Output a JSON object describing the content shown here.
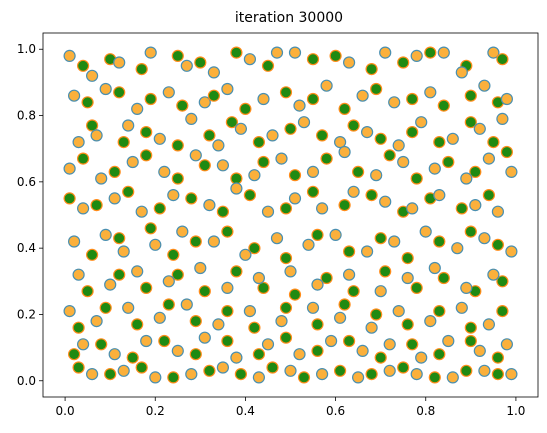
{
  "chart_data": {
    "type": "scatter",
    "title": "iteration 30000",
    "xlabel": "",
    "ylabel": "",
    "xlim": [
      -0.049,
      1.049
    ],
    "ylim": [
      -0.049,
      1.049
    ],
    "xticks": [
      0.0,
      0.2,
      0.4,
      0.6,
      0.8,
      1.0
    ],
    "yticks": [
      0.0,
      0.2,
      0.4,
      0.6,
      0.8,
      1.0
    ],
    "xtick_labels": [
      "0.0",
      "0.2",
      "0.4",
      "0.6",
      "0.8",
      "1.0"
    ],
    "ytick_labels": [
      "0.0",
      "0.2",
      "0.4",
      "0.6",
      "0.8",
      "1.0"
    ],
    "grid": false,
    "legend": "none",
    "series": [
      {
        "marker_face": "#fbb03b",
        "marker_edge": "#4a8fb0",
        "approx_points": 500,
        "distribution": "uniform over [0,1] x [0,1]",
        "points": [
          [
            0.01,
            0.98
          ],
          [
            0.06,
            0.92
          ],
          [
            0.12,
            0.96
          ],
          [
            0.19,
            0.99
          ],
          [
            0.27,
            0.95
          ],
          [
            0.33,
            0.93
          ],
          [
            0.41,
            0.97
          ],
          [
            0.47,
            0.99
          ],
          [
            0.51,
            0.99
          ],
          [
            0.63,
            0.96
          ],
          [
            0.71,
            0.99
          ],
          [
            0.78,
            0.98
          ],
          [
            0.84,
            0.99
          ],
          [
            0.95,
            0.99
          ],
          [
            0.02,
            0.86
          ],
          [
            0.09,
            0.88
          ],
          [
            0.16,
            0.82
          ],
          [
            0.23,
            0.87
          ],
          [
            0.31,
            0.84
          ],
          [
            0.36,
            0.88
          ],
          [
            0.44,
            0.85
          ],
          [
            0.52,
            0.83
          ],
          [
            0.58,
            0.89
          ],
          [
            0.66,
            0.86
          ],
          [
            0.73,
            0.84
          ],
          [
            0.81,
            0.87
          ],
          [
            0.88,
            0.93
          ],
          [
            0.93,
            0.89
          ],
          [
            0.98,
            0.85
          ],
          [
            0.03,
            0.72
          ],
          [
            0.07,
            0.74
          ],
          [
            0.14,
            0.77
          ],
          [
            0.21,
            0.73
          ],
          [
            0.28,
            0.79
          ],
          [
            0.34,
            0.71
          ],
          [
            0.39,
            0.76
          ],
          [
            0.46,
            0.74
          ],
          [
            0.53,
            0.78
          ],
          [
            0.61,
            0.72
          ],
          [
            0.67,
            0.75
          ],
          [
            0.74,
            0.71
          ],
          [
            0.79,
            0.78
          ],
          [
            0.86,
            0.73
          ],
          [
            0.92,
            0.76
          ],
          [
            0.97,
            0.79
          ],
          [
            0.01,
            0.64
          ],
          [
            0.08,
            0.61
          ],
          [
            0.15,
            0.66
          ],
          [
            0.22,
            0.63
          ],
          [
            0.29,
            0.68
          ],
          [
            0.35,
            0.65
          ],
          [
            0.42,
            0.62
          ],
          [
            0.48,
            0.67
          ],
          [
            0.55,
            0.63
          ],
          [
            0.62,
            0.69
          ],
          [
            0.69,
            0.62
          ],
          [
            0.75,
            0.66
          ],
          [
            0.82,
            0.64
          ],
          [
            0.89,
            0.61
          ],
          [
            0.94,
            0.67
          ],
          [
            0.99,
            0.63
          ],
          [
            0.04,
            0.52
          ],
          [
            0.11,
            0.55
          ],
          [
            0.17,
            0.51
          ],
          [
            0.24,
            0.56
          ],
          [
            0.32,
            0.53
          ],
          [
            0.38,
            0.58
          ],
          [
            0.45,
            0.51
          ],
          [
            0.51,
            0.55
          ],
          [
            0.57,
            0.52
          ],
          [
            0.64,
            0.57
          ],
          [
            0.71,
            0.54
          ],
          [
            0.77,
            0.52
          ],
          [
            0.83,
            0.56
          ],
          [
            0.91,
            0.53
          ],
          [
            0.96,
            0.51
          ],
          [
            0.02,
            0.42
          ],
          [
            0.09,
            0.44
          ],
          [
            0.13,
            0.39
          ],
          [
            0.2,
            0.41
          ],
          [
            0.26,
            0.45
          ],
          [
            0.33,
            0.42
          ],
          [
            0.4,
            0.38
          ],
          [
            0.47,
            0.43
          ],
          [
            0.54,
            0.41
          ],
          [
            0.6,
            0.44
          ],
          [
            0.67,
            0.39
          ],
          [
            0.73,
            0.42
          ],
          [
            0.8,
            0.45
          ],
          [
            0.87,
            0.4
          ],
          [
            0.93,
            0.43
          ],
          [
            0.99,
            0.39
          ],
          [
            0.03,
            0.32
          ],
          [
            0.1,
            0.29
          ],
          [
            0.16,
            0.33
          ],
          [
            0.23,
            0.3
          ],
          [
            0.3,
            0.34
          ],
          [
            0.36,
            0.28
          ],
          [
            0.43,
            0.31
          ],
          [
            0.5,
            0.33
          ],
          [
            0.56,
            0.29
          ],
          [
            0.63,
            0.32
          ],
          [
            0.7,
            0.27
          ],
          [
            0.76,
            0.31
          ],
          [
            0.82,
            0.34
          ],
          [
            0.89,
            0.28
          ],
          [
            0.95,
            0.32
          ],
          [
            0.01,
            0.21
          ],
          [
            0.07,
            0.18
          ],
          [
            0.14,
            0.22
          ],
          [
            0.21,
            0.19
          ],
          [
            0.27,
            0.23
          ],
          [
            0.34,
            0.17
          ],
          [
            0.41,
            0.21
          ],
          [
            0.48,
            0.18
          ],
          [
            0.55,
            0.22
          ],
          [
            0.61,
            0.19
          ],
          [
            0.68,
            0.16
          ],
          [
            0.74,
            0.21
          ],
          [
            0.81,
            0.18
          ],
          [
            0.88,
            0.22
          ],
          [
            0.94,
            0.17
          ],
          [
            0.04,
            0.11
          ],
          [
            0.11,
            0.08
          ],
          [
            0.18,
            0.12
          ],
          [
            0.25,
            0.09
          ],
          [
            0.31,
            0.13
          ],
          [
            0.38,
            0.07
          ],
          [
            0.45,
            0.11
          ],
          [
            0.52,
            0.08
          ],
          [
            0.59,
            0.12
          ],
          [
            0.66,
            0.09
          ],
          [
            0.72,
            0.11
          ],
          [
            0.79,
            0.07
          ],
          [
            0.85,
            0.12
          ],
          [
            0.92,
            0.09
          ],
          [
            0.98,
            0.11
          ],
          [
            0.06,
            0.02
          ],
          [
            0.13,
            0.03
          ],
          [
            0.2,
            0.01
          ],
          [
            0.28,
            0.02
          ],
          [
            0.35,
            0.04
          ],
          [
            0.43,
            0.01
          ],
          [
            0.5,
            0.03
          ],
          [
            0.57,
            0.02
          ],
          [
            0.65,
            0.01
          ],
          [
            0.72,
            0.03
          ],
          [
            0.78,
            0.02
          ],
          [
            0.86,
            0.01
          ],
          [
            0.93,
            0.03
          ],
          [
            0.99,
            0.02
          ]
        ]
      },
      {
        "marker_face": "#1f8a12",
        "marker_edge": "#ff8c1a",
        "approx_points": 500,
        "distribution": "uniform over [0,1] x [0,1]",
        "points": [
          [
            0.04,
            0.95
          ],
          [
            0.1,
            0.97
          ],
          [
            0.17,
            0.94
          ],
          [
            0.25,
            0.98
          ],
          [
            0.3,
            0.96
          ],
          [
            0.38,
            0.99
          ],
          [
            0.45,
            0.95
          ],
          [
            0.55,
            0.97
          ],
          [
            0.6,
            0.98
          ],
          [
            0.68,
            0.94
          ],
          [
            0.75,
            0.96
          ],
          [
            0.81,
            0.99
          ],
          [
            0.89,
            0.95
          ],
          [
            0.97,
            0.97
          ],
          [
            0.05,
            0.84
          ],
          [
            0.12,
            0.87
          ],
          [
            0.19,
            0.85
          ],
          [
            0.26,
            0.83
          ],
          [
            0.33,
            0.86
          ],
          [
            0.4,
            0.82
          ],
          [
            0.49,
            0.87
          ],
          [
            0.55,
            0.85
          ],
          [
            0.62,
            0.82
          ],
          [
            0.69,
            0.88
          ],
          [
            0.77,
            0.85
          ],
          [
            0.84,
            0.83
          ],
          [
            0.9,
            0.86
          ],
          [
            0.96,
            0.84
          ],
          [
            0.06,
            0.77
          ],
          [
            0.13,
            0.72
          ],
          [
            0.18,
            0.75
          ],
          [
            0.25,
            0.71
          ],
          [
            0.32,
            0.74
          ],
          [
            0.37,
            0.78
          ],
          [
            0.43,
            0.72
          ],
          [
            0.5,
            0.76
          ],
          [
            0.57,
            0.74
          ],
          [
            0.64,
            0.77
          ],
          [
            0.7,
            0.73
          ],
          [
            0.77,
            0.75
          ],
          [
            0.83,
            0.72
          ],
          [
            0.9,
            0.78
          ],
          [
            0.95,
            0.72
          ],
          [
            0.04,
            0.67
          ],
          [
            0.11,
            0.63
          ],
          [
            0.18,
            0.68
          ],
          [
            0.25,
            0.61
          ],
          [
            0.31,
            0.65
          ],
          [
            0.38,
            0.61
          ],
          [
            0.44,
            0.66
          ],
          [
            0.51,
            0.62
          ],
          [
            0.58,
            0.67
          ],
          [
            0.65,
            0.63
          ],
          [
            0.72,
            0.68
          ],
          [
            0.78,
            0.61
          ],
          [
            0.85,
            0.66
          ],
          [
            0.91,
            0.63
          ],
          [
            0.98,
            0.69
          ],
          [
            0.01,
            0.55
          ],
          [
            0.07,
            0.53
          ],
          [
            0.14,
            0.57
          ],
          [
            0.21,
            0.52
          ],
          [
            0.28,
            0.55
          ],
          [
            0.35,
            0.51
          ],
          [
            0.41,
            0.56
          ],
          [
            0.49,
            0.52
          ],
          [
            0.55,
            0.57
          ],
          [
            0.62,
            0.53
          ],
          [
            0.68,
            0.56
          ],
          [
            0.75,
            0.51
          ],
          [
            0.81,
            0.55
          ],
          [
            0.88,
            0.52
          ],
          [
            0.94,
            0.56
          ],
          [
            0.06,
            0.38
          ],
          [
            0.12,
            0.43
          ],
          [
            0.19,
            0.46
          ],
          [
            0.24,
            0.38
          ],
          [
            0.29,
            0.42
          ],
          [
            0.36,
            0.45
          ],
          [
            0.42,
            0.4
          ],
          [
            0.49,
            0.37
          ],
          [
            0.56,
            0.44
          ],
          [
            0.63,
            0.39
          ],
          [
            0.7,
            0.43
          ],
          [
            0.76,
            0.37
          ],
          [
            0.83,
            0.42
          ],
          [
            0.9,
            0.45
          ],
          [
            0.96,
            0.41
          ],
          [
            0.05,
            0.27
          ],
          [
            0.12,
            0.32
          ],
          [
            0.18,
            0.28
          ],
          [
            0.25,
            0.32
          ],
          [
            0.31,
            0.27
          ],
          [
            0.38,
            0.33
          ],
          [
            0.44,
            0.28
          ],
          [
            0.51,
            0.26
          ],
          [
            0.58,
            0.31
          ],
          [
            0.64,
            0.27
          ],
          [
            0.71,
            0.33
          ],
          [
            0.78,
            0.28
          ],
          [
            0.84,
            0.31
          ],
          [
            0.91,
            0.27
          ],
          [
            0.97,
            0.3
          ],
          [
            0.03,
            0.16
          ],
          [
            0.09,
            0.22
          ],
          [
            0.16,
            0.17
          ],
          [
            0.23,
            0.23
          ],
          [
            0.29,
            0.18
          ],
          [
            0.36,
            0.21
          ],
          [
            0.42,
            0.16
          ],
          [
            0.49,
            0.22
          ],
          [
            0.56,
            0.17
          ],
          [
            0.62,
            0.23
          ],
          [
            0.69,
            0.2
          ],
          [
            0.76,
            0.17
          ],
          [
            0.83,
            0.21
          ],
          [
            0.9,
            0.16
          ],
          [
            0.97,
            0.21
          ],
          [
            0.02,
            0.08
          ],
          [
            0.08,
            0.11
          ],
          [
            0.15,
            0.07
          ],
          [
            0.22,
            0.12
          ],
          [
            0.29,
            0.08
          ],
          [
            0.36,
            0.12
          ],
          [
            0.43,
            0.08
          ],
          [
            0.49,
            0.13
          ],
          [
            0.56,
            0.09
          ],
          [
            0.63,
            0.12
          ],
          [
            0.7,
            0.07
          ],
          [
            0.77,
            0.11
          ],
          [
            0.83,
            0.08
          ],
          [
            0.9,
            0.12
          ],
          [
            0.96,
            0.07
          ],
          [
            0.03,
            0.04
          ],
          [
            0.1,
            0.02
          ],
          [
            0.17,
            0.04
          ],
          [
            0.24,
            0.01
          ],
          [
            0.32,
            0.03
          ],
          [
            0.39,
            0.02
          ],
          [
            0.46,
            0.04
          ],
          [
            0.53,
            0.01
          ],
          [
            0.61,
            0.03
          ],
          [
            0.68,
            0.02
          ],
          [
            0.75,
            0.04
          ],
          [
            0.82,
            0.01
          ],
          [
            0.89,
            0.03
          ],
          [
            0.96,
            0.02
          ]
        ]
      }
    ]
  }
}
